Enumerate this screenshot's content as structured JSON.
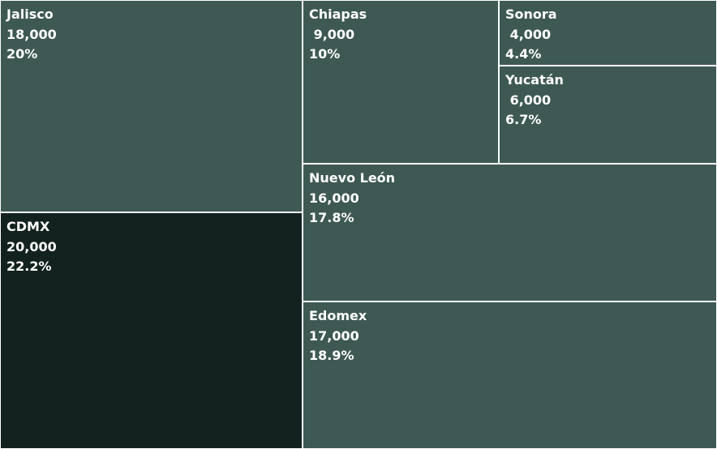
{
  "chart_data": {
    "type": "treemap",
    "colors": {
      "default": "#3e5953",
      "highlight": "#12221e",
      "border": "#ffffff"
    },
    "items": [
      {
        "name": "Jalisco",
        "value": 18000,
        "value_label": "18,000",
        "percent_label": "20%",
        "highlight": false
      },
      {
        "name": "CDMX",
        "value": 20000,
        "value_label": "20,000",
        "percent_label": "22.2%",
        "highlight": true
      },
      {
        "name": "Chiapas",
        "value": 9000,
        "value_label": " 9,000",
        "percent_label": "10%",
        "highlight": false
      },
      {
        "name": "Sonora",
        "value": 4000,
        "value_label": " 4,000",
        "percent_label": "4.4%",
        "highlight": false
      },
      {
        "name": "Yucatán",
        "value": 6000,
        "value_label": " 6,000",
        "percent_label": "6.7%",
        "highlight": false
      },
      {
        "name": "Nuevo León",
        "value": 16000,
        "value_label": "16,000",
        "percent_label": "17.8%",
        "highlight": false
      },
      {
        "name": "Edomex",
        "value": 17000,
        "value_label": "17,000",
        "percent_label": "18.9%",
        "highlight": false
      }
    ]
  }
}
